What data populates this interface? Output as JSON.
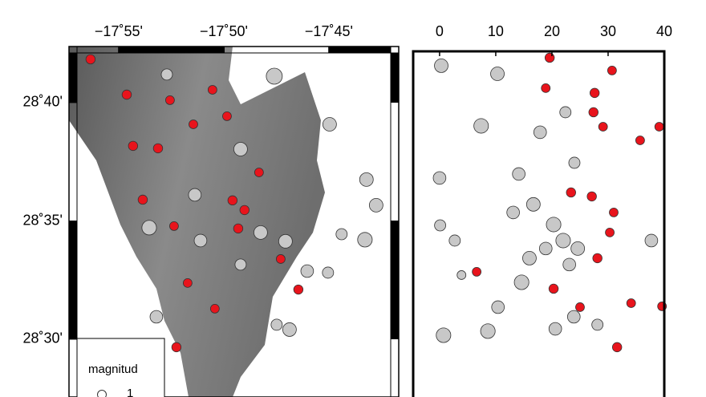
{
  "chart_data": [
    {
      "type": "map",
      "xlim": [
        -17.9561,
        -17.6946
      ],
      "ylim": [
        28.4593,
        28.7062
      ],
      "xticks": [
        {
          "value": -17.9167,
          "label": "−17˚55'"
        },
        {
          "value": -17.8333,
          "label": "−17˚50'"
        },
        {
          "value": -17.75,
          "label": "−17˚45'"
        }
      ],
      "yticks": [
        {
          "value": 28.6667,
          "label": "28˚40'"
        },
        {
          "value": 28.5833,
          "label": "28˚35'"
        },
        {
          "value": 28.5,
          "label": "28˚30'"
        }
      ],
      "legend": {
        "title": "magnitud",
        "entries": [
          {
            "value": 1,
            "label": "1"
          }
        ]
      },
      "series": [
        {
          "color": "#e8141c",
          "x": [
            -17.939,
            -17.9103,
            -17.876,
            -17.8423,
            -17.9053,
            -17.8855,
            -17.8575,
            -17.8308,
            -17.8976,
            -17.8728,
            -17.862,
            -17.8404,
            -17.8709,
            -17.8054,
            -17.7742,
            -17.8264,
            -17.8169,
            -17.8219,
            -17.7882
          ],
          "y": [
            28.6972,
            28.6723,
            28.6684,
            28.6757,
            28.6362,
            28.6345,
            28.6514,
            28.6571,
            28.5983,
            28.5797,
            28.5396,
            28.5215,
            28.4944,
            28.6175,
            28.535,
            28.5978,
            28.591,
            28.578,
            28.5565
          ],
          "size": [
            1.1,
            1.1,
            1,
            1,
            1.1,
            1.1,
            1,
            1,
            1.1,
            1,
            1,
            1,
            1.1,
            1,
            1.1,
            1.1,
            1.1,
            1.1,
            1
          ]
        },
        {
          "color": "#c8c8c8",
          "x": [
            -17.8785,
            -17.7933,
            -17.7494,
            -17.7202,
            -17.7125,
            -17.7214,
            -17.7399,
            -17.7507,
            -17.7672,
            -17.7844,
            -17.82,
            -17.8925,
            -17.8868,
            -17.8563,
            -17.82,
            -17.7914,
            -17.7812,
            -17.8518,
            -17.8041
          ],
          "y": [
            28.6865,
            28.6853,
            28.6514,
            28.6125,
            28.5944,
            28.5701,
            28.574,
            28.5469,
            28.548,
            28.569,
            28.5526,
            28.5786,
            28.5158,
            28.6017,
            28.6339,
            28.5102,
            28.5068,
            28.5695,
            28.5752
          ],
          "size": [
            1.5,
            2.5,
            2,
            2,
            2,
            2.2,
            1.5,
            1.5,
            1.8,
            2,
            1.5,
            2.2,
            1.8,
            1.8,
            2,
            1.5,
            2,
            1.8,
            2
          ]
        }
      ]
    },
    {
      "type": "scatter",
      "xlim": [
        -4.7,
        40
      ],
      "ylim": [
        28.4593,
        28.7062
      ],
      "xticks": [
        0,
        10,
        20,
        30,
        40
      ],
      "series": [
        {
          "color": "#e8141c",
          "x": [
            19.6,
            18.9,
            27.6,
            30.7,
            27.4,
            29.1,
            35.7,
            39.1,
            23.4,
            27.1,
            31,
            30.3,
            28.1,
            20.3,
            25,
            34.1,
            39.6,
            31.6,
            6.6
          ],
          "y": [
            28.6983,
            28.6769,
            28.6735,
            28.6893,
            28.6599,
            28.6497,
            28.6401,
            28.6497,
            28.6034,
            28.6006,
            28.5893,
            28.5752,
            28.5571,
            28.5356,
            28.5226,
            28.5254,
            28.5232,
            28.4944,
            28.5475
          ],
          "size": [
            1.1,
            1,
            1.1,
            1,
            1.1,
            1,
            1,
            1,
            1.1,
            1.1,
            1,
            1,
            1.1,
            1.1,
            1,
            1,
            1,
            1.1,
            1
          ]
        },
        {
          "color": "#c8c8c8",
          "x": [
            0.3,
            10.3,
            7.4,
            0,
            0.1,
            2.7,
            3.9,
            8.6,
            0.7,
            14.6,
            10.4,
            20.6,
            23.9,
            28.1,
            37.7,
            14.1,
            16.7,
            20.3,
            22,
            24.6,
            18.9,
            16,
            23.1,
            13.1,
            24,
            22.4,
            17.9
          ],
          "y": [
            28.6927,
            28.687,
            28.6503,
            28.6136,
            28.5802,
            28.5695,
            28.5452,
            28.5057,
            28.5028,
            28.5401,
            28.5226,
            28.5073,
            28.5158,
            28.5102,
            28.5695,
            28.6164,
            28.595,
            28.5808,
            28.5695,
            28.5639,
            28.5639,
            28.5571,
            28.5526,
            28.5893,
            28.6243,
            28.6599,
            28.6458
          ],
          "size": [
            2,
            2,
            2.2,
            1.8,
            1.5,
            1.5,
            1,
            2.2,
            2.2,
            2.2,
            1.8,
            1.8,
            1.8,
            1.5,
            1.8,
            1.8,
            2,
            2.2,
            2.2,
            2,
            1.8,
            2,
            1.8,
            1.8,
            1.5,
            1.5,
            1.8
          ]
        }
      ]
    }
  ]
}
